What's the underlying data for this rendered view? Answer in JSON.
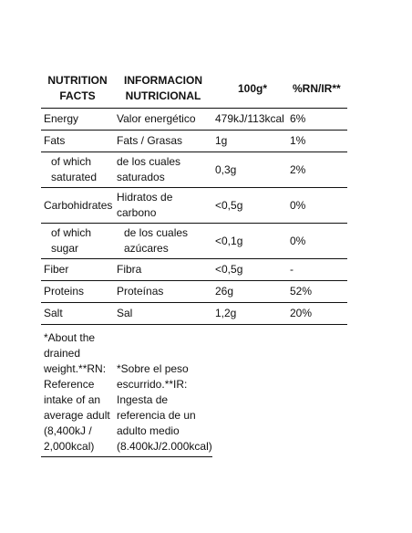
{
  "table": {
    "headers": {
      "col1": "NUTRITION FACTS",
      "col2": "INFORMACION NUTRICIONAL",
      "col3": "100g*",
      "col4": "%RN/IR**"
    },
    "rows": [
      {
        "en": "Energy",
        "es": "Valor energético",
        "value": "479kJ/113kcal",
        "pct": "6%"
      },
      {
        "en": "Fats",
        "es": "Fats / Grasas",
        "value": "1g",
        "pct": "1%"
      },
      {
        "en": "of which saturated",
        "es": "de los cuales saturados",
        "value": "0,3g",
        "pct": "2%"
      },
      {
        "en": "Carbohidrates",
        "es": "Hidratos de carbono",
        "value": "<0,5g",
        "pct": "0%"
      },
      {
        "en": "of which sugar",
        "es": "de los cuales azúcares",
        "value": "<0,1g",
        "pct": "0%"
      },
      {
        "en": "Fiber",
        "es": "Fibra",
        "value": "<0,5g",
        "pct": "-"
      },
      {
        "en": "Proteins",
        "es": "Proteínas",
        "value": "26g",
        "pct": "52%"
      },
      {
        "en": "Salt",
        "es": "Sal",
        "value": "1,2g",
        "pct": "20%"
      }
    ],
    "footnotes": {
      "en": "*About the drained weight.**RN: Reference intake of an average adult (8,400kJ / 2,000kcal)",
      "es": "*Sobre el peso escurrido.**IR: Ingesta de referencia de un adulto medio (8.400kJ/2.000kcal)"
    }
  }
}
